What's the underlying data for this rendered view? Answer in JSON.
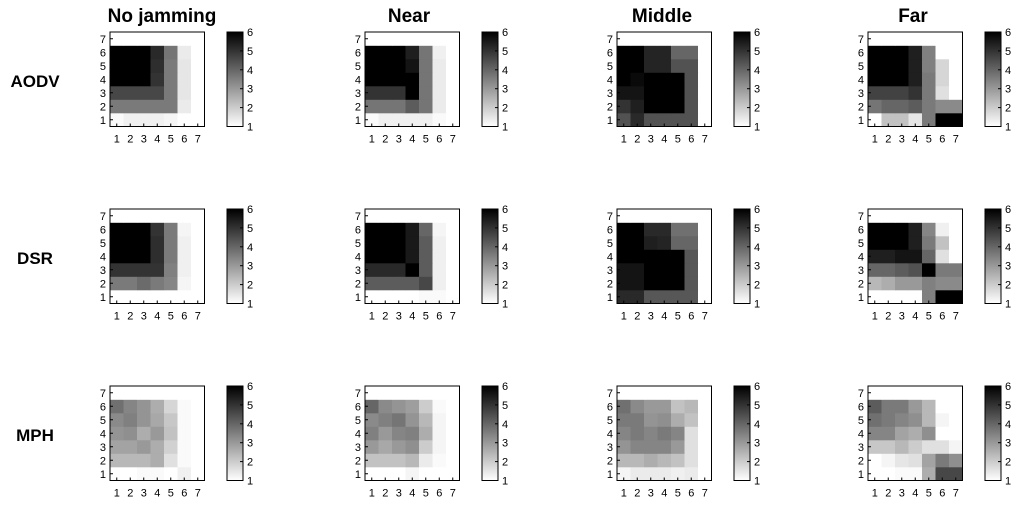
{
  "figure": {
    "column_titles": [
      "No jamming",
      "Near",
      "Middle",
      "Far"
    ],
    "row_titles": [
      "AODV",
      "DSR",
      "MPH"
    ]
  },
  "chart_data": [
    {
      "type": "heatmap",
      "row": "AODV",
      "column": "No jamming",
      "x": [
        1,
        2,
        3,
        4,
        5,
        6,
        7
      ],
      "y": [
        1,
        2,
        3,
        4,
        5,
        6,
        7
      ],
      "colorbar": {
        "ticks": [
          1,
          2,
          3,
          4,
          5,
          6
        ],
        "range": [
          1,
          6
        ],
        "colormap": "white-to-black"
      },
      "values": [
        [
          1.1,
          1.3,
          1.3,
          1.3,
          1.2,
          1.0,
          1.0
        ],
        [
          3.6,
          3.6,
          3.6,
          3.6,
          3.6,
          1.4,
          1.0
        ],
        [
          4.6,
          4.6,
          4.6,
          4.6,
          3.6,
          1.5,
          1.0
        ],
        [
          6.0,
          6.0,
          6.0,
          5.0,
          3.6,
          1.5,
          1.0
        ],
        [
          6.0,
          6.0,
          6.0,
          5.1,
          3.6,
          1.5,
          1.0
        ],
        [
          6.0,
          6.0,
          6.0,
          5.2,
          3.7,
          1.4,
          1.0
        ],
        [
          1.0,
          1.0,
          1.0,
          1.0,
          1.0,
          1.0,
          1.0
        ]
      ]
    },
    {
      "type": "heatmap",
      "row": "AODV",
      "column": "Near",
      "x": [
        1,
        2,
        3,
        4,
        5,
        6,
        7
      ],
      "y": [
        1,
        2,
        3,
        4,
        5,
        6,
        7
      ],
      "colorbar": {
        "ticks": [
          1,
          2,
          3,
          4,
          5,
          6
        ],
        "range": [
          1,
          6
        ],
        "colormap": "white-to-black"
      },
      "values": [
        [
          1.1,
          1.3,
          1.3,
          1.3,
          1.3,
          1.1,
          1.0
        ],
        [
          3.7,
          3.7,
          3.7,
          4.2,
          3.7,
          1.4,
          1.0
        ],
        [
          5.0,
          5.0,
          5.0,
          6.0,
          3.7,
          1.4,
          1.0
        ],
        [
          6.0,
          6.0,
          6.0,
          6.0,
          3.7,
          1.4,
          1.0
        ],
        [
          6.0,
          6.0,
          6.0,
          5.6,
          3.7,
          1.4,
          1.0
        ],
        [
          6.0,
          6.0,
          6.0,
          5.4,
          3.7,
          1.3,
          1.0
        ],
        [
          1.0,
          1.0,
          1.0,
          1.0,
          1.0,
          1.0,
          1.0
        ]
      ]
    },
    {
      "type": "heatmap",
      "row": "AODV",
      "column": "Middle",
      "x": [
        1,
        2,
        3,
        4,
        5,
        6,
        7
      ],
      "y": [
        1,
        2,
        3,
        4,
        5,
        6,
        7
      ],
      "colorbar": {
        "ticks": [
          1,
          2,
          3,
          4,
          5,
          6
        ],
        "range": [
          1,
          6
        ],
        "colormap": "white-to-black"
      },
      "values": [
        [
          4.4,
          5.2,
          4.4,
          4.4,
          4.4,
          4.4,
          1.0
        ],
        [
          5.0,
          5.4,
          6.0,
          6.0,
          6.0,
          4.4,
          1.0
        ],
        [
          5.6,
          5.6,
          6.0,
          6.0,
          6.0,
          4.4,
          1.0
        ],
        [
          6.0,
          5.8,
          6.0,
          6.0,
          6.0,
          4.4,
          1.0
        ],
        [
          6.0,
          6.0,
          5.3,
          5.3,
          4.4,
          4.4,
          1.0
        ],
        [
          6.0,
          6.0,
          5.3,
          5.3,
          4.0,
          4.0,
          1.0
        ],
        [
          1.0,
          1.0,
          1.0,
          1.0,
          1.0,
          1.0,
          1.0
        ]
      ]
    },
    {
      "type": "heatmap",
      "row": "AODV",
      "column": "Far",
      "x": [
        1,
        2,
        3,
        4,
        5,
        6,
        7
      ],
      "y": [
        1,
        2,
        3,
        4,
        5,
        6,
        7
      ],
      "colorbar": {
        "ticks": [
          1,
          2,
          3,
          4,
          5,
          6
        ],
        "range": [
          1,
          6
        ],
        "colormap": "white-to-black"
      },
      "values": [
        [
          1.0,
          2.2,
          2.2,
          1.5,
          3.6,
          6.0,
          6.0
        ],
        [
          3.7,
          4.0,
          4.0,
          4.2,
          3.6,
          3.3,
          3.3
        ],
        [
          4.7,
          4.7,
          4.7,
          5.0,
          3.6,
          1.6,
          1.0
        ],
        [
          6.0,
          6.0,
          6.0,
          5.4,
          3.6,
          1.8,
          1.0
        ],
        [
          6.0,
          6.0,
          6.0,
          5.4,
          3.5,
          1.8,
          1.0
        ],
        [
          6.0,
          6.0,
          6.0,
          5.4,
          3.5,
          1.0,
          1.0
        ],
        [
          1.0,
          1.0,
          1.0,
          1.0,
          1.0,
          1.0,
          1.0
        ]
      ]
    },
    {
      "type": "heatmap",
      "row": "DSR",
      "column": "No jamming",
      "x": [
        1,
        2,
        3,
        4,
        5,
        6,
        7
      ],
      "y": [
        1,
        2,
        3,
        4,
        5,
        6,
        7
      ],
      "colorbar": {
        "ticks": [
          1,
          2,
          3,
          4,
          5,
          6
        ],
        "range": [
          1,
          6
        ],
        "colormap": "white-to-black"
      },
      "values": [
        [
          1.0,
          1.0,
          1.0,
          1.0,
          1.0,
          1.0,
          1.0
        ],
        [
          3.6,
          3.6,
          3.9,
          3.6,
          3.4,
          1.2,
          1.0
        ],
        [
          5.0,
          5.0,
          5.0,
          5.0,
          3.5,
          1.3,
          1.0
        ],
        [
          6.0,
          6.0,
          6.0,
          5.1,
          3.6,
          1.3,
          1.0
        ],
        [
          6.0,
          6.0,
          6.0,
          5.1,
          3.6,
          1.3,
          1.0
        ],
        [
          6.0,
          6.0,
          6.0,
          5.0,
          3.6,
          1.2,
          1.0
        ],
        [
          1.0,
          1.0,
          1.0,
          1.0,
          1.0,
          1.0,
          1.0
        ]
      ]
    },
    {
      "type": "heatmap",
      "row": "DSR",
      "column": "Near",
      "x": [
        1,
        2,
        3,
        4,
        5,
        6,
        7
      ],
      "y": [
        1,
        2,
        3,
        4,
        5,
        6,
        7
      ],
      "colorbar": {
        "ticks": [
          1,
          2,
          3,
          4,
          5,
          6
        ],
        "range": [
          1,
          6
        ],
        "colormap": "white-to-black"
      },
      "values": [
        [
          1.0,
          1.0,
          1.0,
          1.0,
          1.1,
          1.1,
          1.0
        ],
        [
          4.2,
          4.2,
          4.2,
          4.2,
          4.6,
          1.3,
          1.0
        ],
        [
          5.2,
          5.2,
          5.2,
          6.0,
          4.2,
          1.3,
          1.0
        ],
        [
          6.0,
          6.0,
          6.0,
          5.5,
          4.2,
          1.3,
          1.0
        ],
        [
          6.0,
          6.0,
          6.0,
          5.5,
          4.2,
          1.3,
          1.0
        ],
        [
          6.0,
          6.0,
          6.0,
          5.5,
          4.0,
          1.2,
          1.0
        ],
        [
          1.0,
          1.0,
          1.0,
          1.0,
          1.0,
          1.0,
          1.0
        ]
      ]
    },
    {
      "type": "heatmap",
      "row": "DSR",
      "column": "Middle",
      "x": [
        1,
        2,
        3,
        4,
        5,
        6,
        7
      ],
      "y": [
        1,
        2,
        3,
        4,
        5,
        6,
        7
      ],
      "colorbar": {
        "ticks": [
          1,
          2,
          3,
          4,
          5,
          6
        ],
        "range": [
          1,
          6
        ],
        "colormap": "white-to-black"
      },
      "values": [
        [
          5.2,
          5.2,
          4.3,
          4.3,
          4.3,
          4.3,
          1.0
        ],
        [
          5.6,
          5.6,
          6.0,
          6.0,
          6.0,
          4.3,
          1.0
        ],
        [
          5.6,
          5.6,
          6.0,
          6.0,
          6.0,
          4.3,
          1.0
        ],
        [
          6.0,
          6.0,
          6.0,
          6.0,
          6.0,
          4.3,
          1.0
        ],
        [
          6.0,
          6.0,
          5.4,
          5.3,
          4.0,
          4.0,
          1.0
        ],
        [
          6.0,
          6.0,
          5.2,
          5.2,
          3.8,
          3.8,
          1.0
        ],
        [
          1.0,
          1.0,
          1.0,
          1.0,
          1.0,
          1.0,
          1.0
        ]
      ]
    },
    {
      "type": "heatmap",
      "row": "DSR",
      "column": "Far",
      "x": [
        1,
        2,
        3,
        4,
        5,
        6,
        7
      ],
      "y": [
        1,
        2,
        3,
        4,
        5,
        6,
        7
      ],
      "colorbar": {
        "ticks": [
          1,
          2,
          3,
          4,
          5,
          6
        ],
        "range": [
          1,
          6
        ],
        "colormap": "white-to-black"
      },
      "values": [
        [
          1.0,
          1.0,
          1.0,
          1.0,
          3.5,
          6.0,
          6.0
        ],
        [
          2.4,
          2.6,
          3.0,
          3.0,
          3.5,
          3.3,
          3.3
        ],
        [
          4.0,
          4.0,
          4.2,
          4.4,
          6.0,
          3.6,
          3.6
        ],
        [
          5.4,
          5.4,
          5.6,
          5.6,
          4.0,
          1.6,
          1.0
        ],
        [
          6.0,
          6.0,
          6.0,
          5.4,
          3.6,
          2.2,
          1.0
        ],
        [
          6.0,
          6.0,
          6.0,
          5.4,
          3.4,
          1.3,
          1.0
        ],
        [
          1.0,
          1.0,
          1.0,
          1.0,
          1.0,
          1.0,
          1.0
        ]
      ]
    },
    {
      "type": "heatmap",
      "row": "MPH",
      "column": "No jamming",
      "x": [
        1,
        2,
        3,
        4,
        5,
        6,
        7
      ],
      "y": [
        1,
        2,
        3,
        4,
        5,
        6,
        7
      ],
      "colorbar": {
        "ticks": [
          1,
          2,
          3,
          4,
          5,
          6
        ],
        "range": [
          1,
          6
        ],
        "colormap": "white-to-black"
      },
      "values": [
        [
          1.0,
          1.0,
          1.1,
          1.1,
          1.0,
          1.3,
          1.0
        ],
        [
          2.4,
          2.4,
          2.4,
          2.6,
          1.6,
          1.1,
          1.0
        ],
        [
          2.8,
          2.8,
          3.0,
          2.6,
          1.9,
          1.1,
          1.0
        ],
        [
          3.1,
          3.2,
          2.6,
          3.0,
          2.2,
          1.1,
          1.0
        ],
        [
          3.3,
          3.5,
          3.1,
          2.7,
          2.1,
          1.1,
          1.0
        ],
        [
          3.8,
          3.4,
          3.1,
          2.6,
          1.8,
          1.1,
          1.0
        ],
        [
          1.0,
          1.0,
          1.0,
          1.0,
          1.0,
          1.0,
          1.0
        ]
      ]
    },
    {
      "type": "heatmap",
      "row": "MPH",
      "column": "Near",
      "x": [
        1,
        2,
        3,
        4,
        5,
        6,
        7
      ],
      "y": [
        1,
        2,
        3,
        4,
        5,
        6,
        7
      ],
      "colorbar": {
        "ticks": [
          1,
          2,
          3,
          4,
          5,
          6
        ],
        "range": [
          1,
          6
        ],
        "colormap": "white-to-black"
      },
      "values": [
        [
          1.0,
          1.0,
          1.0,
          1.2,
          1.0,
          1.0,
          1.0
        ],
        [
          2.2,
          2.2,
          2.2,
          2.4,
          1.4,
          1.1,
          1.0
        ],
        [
          3.0,
          2.7,
          3.0,
          3.2,
          2.0,
          1.2,
          1.0
        ],
        [
          3.5,
          3.0,
          3.4,
          3.5,
          2.6,
          1.2,
          1.0
        ],
        [
          3.3,
          3.5,
          3.7,
          3.1,
          2.4,
          1.2,
          1.0
        ],
        [
          4.0,
          3.3,
          3.1,
          2.9,
          2.0,
          1.1,
          1.0
        ],
        [
          1.0,
          1.0,
          1.0,
          1.0,
          1.0,
          1.0,
          1.0
        ]
      ]
    },
    {
      "type": "heatmap",
      "row": "MPH",
      "column": "Middle",
      "x": [
        1,
        2,
        3,
        4,
        5,
        6,
        7
      ],
      "y": [
        1,
        2,
        3,
        4,
        5,
        6,
        7
      ],
      "colorbar": {
        "ticks": [
          1,
          2,
          3,
          4,
          5,
          6
        ],
        "range": [
          1,
          6
        ],
        "colormap": "white-to-black"
      },
      "values": [
        [
          1.2,
          1.4,
          1.4,
          1.4,
          1.3,
          1.4,
          1.0
        ],
        [
          2.4,
          2.4,
          2.6,
          2.4,
          2.2,
          1.6,
          1.0
        ],
        [
          3.1,
          3.4,
          3.4,
          3.4,
          3.0,
          1.6,
          1.0
        ],
        [
          3.4,
          3.6,
          3.4,
          3.6,
          3.4,
          1.6,
          1.0
        ],
        [
          3.6,
          3.6,
          3.1,
          3.2,
          2.6,
          2.2,
          1.0
        ],
        [
          3.8,
          3.3,
          3.0,
          3.0,
          2.2,
          2.4,
          1.0
        ],
        [
          1.0,
          1.0,
          1.0,
          1.0,
          1.0,
          1.0,
          1.0
        ]
      ]
    },
    {
      "type": "heatmap",
      "row": "MPH",
      "column": "Far",
      "x": [
        1,
        2,
        3,
        4,
        5,
        6,
        7
      ],
      "y": [
        1,
        2,
        3,
        4,
        5,
        6,
        7
      ],
      "colorbar": {
        "ticks": [
          1,
          2,
          3,
          4,
          5,
          6
        ],
        "range": [
          1,
          6
        ],
        "colormap": "white-to-black"
      },
      "values": [
        [
          1.0,
          1.0,
          1.1,
          1.1,
          2.6,
          4.6,
          4.6
        ],
        [
          1.0,
          1.2,
          1.5,
          1.6,
          2.8,
          3.6,
          3.2
        ],
        [
          2.1,
          2.1,
          2.4,
          2.0,
          1.6,
          1.6,
          1.2
        ],
        [
          3.4,
          3.4,
          2.8,
          2.6,
          3.2,
          1.0,
          1.0
        ],
        [
          3.8,
          3.6,
          3.4,
          3.2,
          2.4,
          1.2,
          1.0
        ],
        [
          4.2,
          3.6,
          3.6,
          3.0,
          2.4,
          1.0,
          1.0
        ],
        [
          1.0,
          1.0,
          1.0,
          1.0,
          1.0,
          1.0,
          1.0
        ]
      ]
    }
  ]
}
